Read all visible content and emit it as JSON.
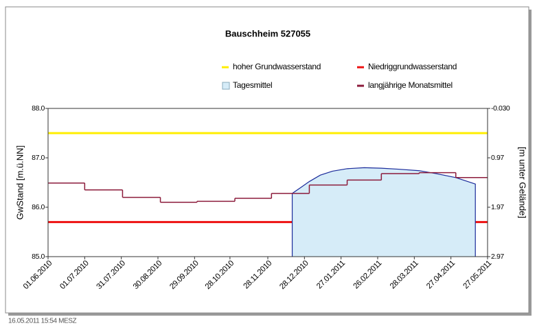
{
  "chart_data": {
    "type": "line",
    "title": "Bauschheim 527055",
    "ylabel": "GwStand [m.ü.NN]",
    "y2label": "[m unter Gelände]",
    "footer": "16.05.2011 15:54 MESZ",
    "xlim": [
      "01.06.2010",
      "27.05.2011"
    ],
    "xticks": [
      "01.06.2010",
      "01.07.2010",
      "31.07.2010",
      "30.08.2010",
      "29.09.2010",
      "28.10.2010",
      "28.11.2010",
      "28.12.2010",
      "27.01.2011",
      "26.02.2011",
      "28.03.2011",
      "27.04.2011",
      "27.05.2011"
    ],
    "ylim": [
      85,
      88
    ],
    "yticks": [
      {
        "value": 85,
        "label": "85.0"
      },
      {
        "value": 86,
        "label": "86.0"
      },
      {
        "value": 87,
        "label": "87.0"
      },
      {
        "value": 88,
        "label": "88.0"
      }
    ],
    "y2lim": [
      -0.03,
      2.97
    ],
    "y2ticks": [
      {
        "value": -0.03,
        "label": "-0.030"
      },
      0.97,
      1.97,
      2.97
    ],
    "series": [
      {
        "name": "hoher Grundwasserstand",
        "color": "#ffee00",
        "style": "line",
        "x": [
          "01.06.2010",
          "27.05.2011"
        ],
        "values": [
          87.5,
          87.5
        ]
      },
      {
        "name": "Niedriggrundwasserstand",
        "color": "#ee1111",
        "style": "line",
        "x": [
          "01.06.2010",
          "27.05.2011"
        ],
        "values": [
          85.7,
          85.7
        ]
      },
      {
        "name": "Tagesmittel",
        "color": "#d6ecf8",
        "style": "area",
        "x": [
          "18.12.2010",
          "25.12.2010",
          "01.01.2011",
          "10.01.2011",
          "20.01.2011",
          "01.02.2011",
          "15.02.2011",
          "01.03.2011",
          "15.03.2011",
          "01.04.2011",
          "15.04.2011",
          "01.05.2011",
          "17.05.2011"
        ],
        "values": [
          86.28,
          86.4,
          86.52,
          86.65,
          86.73,
          86.78,
          86.8,
          86.79,
          86.77,
          86.74,
          86.68,
          86.6,
          86.47
        ]
      },
      {
        "name": "langjährige Monatsmittel",
        "color": "#8b1a3a",
        "style": "step",
        "x": [
          "01.06.2010",
          "01.07.2010",
          "01.08.2010",
          "01.09.2010",
          "01.10.2010",
          "01.11.2010",
          "01.12.2010",
          "01.01.2011",
          "01.02.2011",
          "01.03.2011",
          "01.04.2011",
          "01.05.2011"
        ],
        "values": [
          86.49,
          86.35,
          86.2,
          86.1,
          86.12,
          86.18,
          86.28,
          86.45,
          86.55,
          86.68,
          86.7,
          86.6
        ]
      }
    ]
  }
}
